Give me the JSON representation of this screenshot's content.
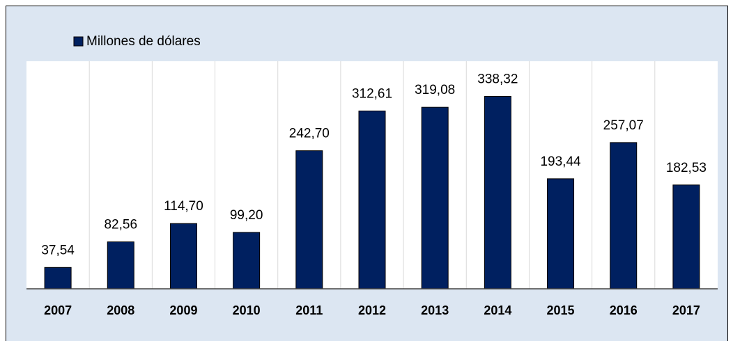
{
  "chart_data": {
    "type": "bar",
    "categories": [
      "2007",
      "2008",
      "2009",
      "2010",
      "2011",
      "2012",
      "2013",
      "2014",
      "2015",
      "2016",
      "2017"
    ],
    "series": [
      {
        "name": "Millones de dólares",
        "color": "#002060",
        "values": [
          37.54,
          82.56,
          114.7,
          99.2,
          242.7,
          312.61,
          319.08,
          338.32,
          193.44,
          257.07,
          182.53
        ],
        "value_labels": [
          "37,54",
          "82,56",
          "114,70",
          "99,20",
          "242,70",
          "312,61",
          "319,08",
          "338,32",
          "193,44",
          "257,07",
          "182,53"
        ]
      }
    ],
    "ylim": [
      0,
      400
    ],
    "grid": true
  }
}
